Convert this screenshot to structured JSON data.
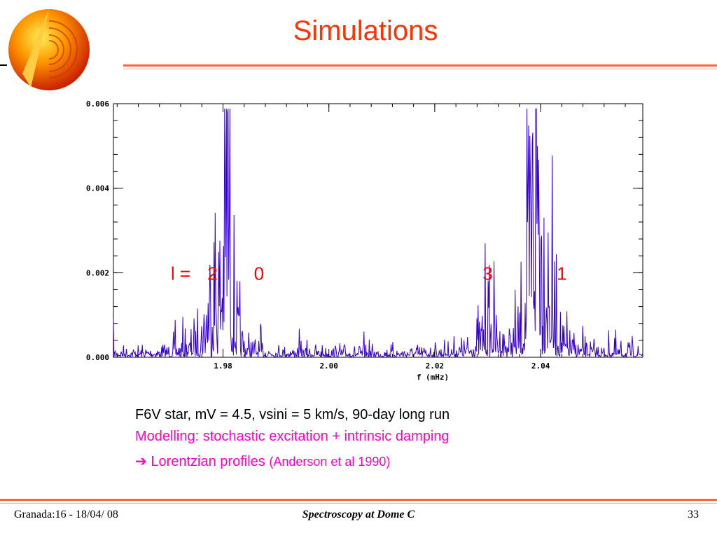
{
  "title": "Simulations",
  "chart_data": {
    "type": "line",
    "xlabel": "f  (mHz)",
    "ylabel": "",
    "xlim": [
      1.9593,
      2.0593
    ],
    "ylim": [
      0,
      0.006
    ],
    "x_ticks": [
      "1.98",
      "2.00",
      "2.02",
      "2.04"
    ],
    "x_tick_values": [
      1.98,
      2.0,
      2.02,
      2.04
    ],
    "y_ticks": [
      "0.000",
      "0.002",
      "0.004",
      "0.006"
    ],
    "y_tick_values": [
      0,
      0.002,
      0.004,
      0.006
    ],
    "color": "#3300cc",
    "peaks": [
      {
        "center": 1.9775,
        "height": 0.0011,
        "width": 0.0012
      },
      {
        "center": 1.9785,
        "height": 0.0012,
        "width": 0.0008
      },
      {
        "center": 1.9805,
        "height": 0.0034,
        "width": 0.0007
      },
      {
        "center": 1.981,
        "height": 0.0041,
        "width": 0.0004
      },
      {
        "center": 2.03,
        "height": 0.0008,
        "width": 0.0015
      },
      {
        "center": 2.0385,
        "height": 0.0038,
        "width": 0.0008
      },
      {
        "center": 2.0395,
        "height": 0.0057,
        "width": 0.0005
      },
      {
        "center": 2.041,
        "height": 0.002,
        "width": 0.001
      }
    ],
    "noise_level": 0.00012,
    "annotations": [
      {
        "text": "l =",
        "x": 1.972,
        "y": 0.002
      },
      {
        "text": "2",
        "x": 1.978,
        "y": 0.002
      },
      {
        "text": "0",
        "x": 1.9868,
        "y": 0.002
      },
      {
        "text": "3",
        "x": 2.03,
        "y": 0.002
      },
      {
        "text": "1",
        "x": 2.044,
        "y": 0.002
      }
    ]
  },
  "caption": {
    "line1": "F6V star, mV = 4.5, vsini = 5 km/s, 90-day long run",
    "line2": "Modelling: stochastic excitation + intrinsic damping",
    "line3_main": "Lorentzian profiles",
    "line3_small": "(Anderson et al 1990)"
  },
  "footer": {
    "left": "Granada:16 - 18/04/ 08",
    "center": "Spectroscopy at Dome C",
    "right": "33"
  },
  "colors": {
    "accent": "#ff3300",
    "magenta": "#ff00cc",
    "trace": "#3300cc"
  }
}
